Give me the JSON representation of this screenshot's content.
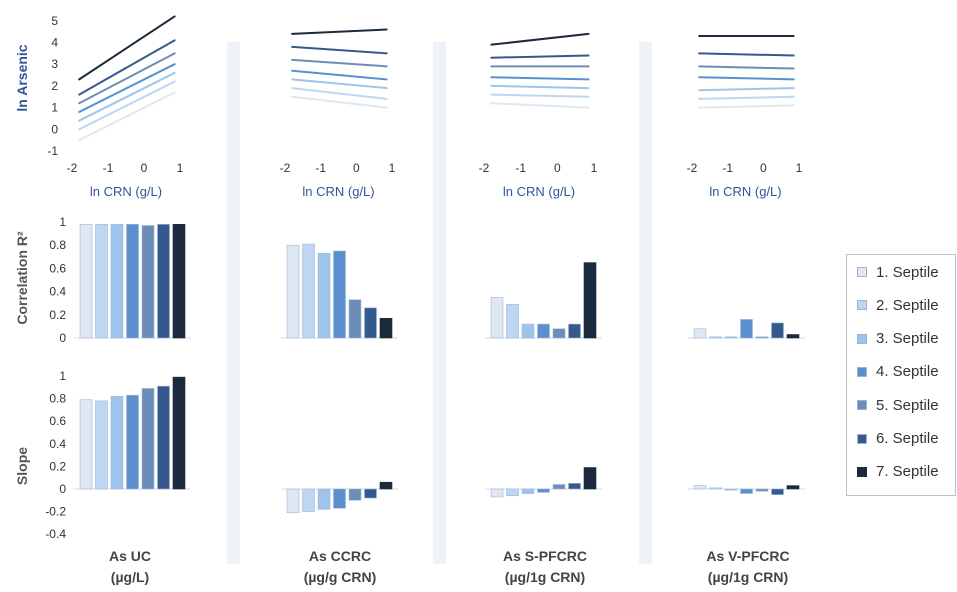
{
  "colors": {
    "septiles": [
      "#dfe7f2",
      "#bdd7f2",
      "#9fc4eb",
      "#5b8fd0",
      "#6c8db8",
      "#35598f",
      "#1b2a3c"
    ],
    "band": "#eef3fa",
    "axis": "#d9d9d9"
  },
  "column_titles": [
    {
      "line1": "As UC",
      "line2": "(µg/L)"
    },
    {
      "line1": "As CCRC",
      "line2": "(µg/g CRN)"
    },
    {
      "line1": "As S-PFCRC",
      "line2": "(µg/1g CRN)"
    },
    {
      "line1": "As V-PFCRC",
      "line2": "(µg/1g CRN)"
    }
  ],
  "chart_data": [
    {
      "type": "line",
      "row": "top",
      "ylabel": "ln Arsenic",
      "xlabel": "ln CRN (g/L)",
      "xlim": [
        -2,
        1
      ],
      "xticks": [
        -2,
        -1,
        0,
        1
      ],
      "ylim": [
        -1,
        5
      ],
      "yticks": [
        -1,
        0,
        1,
        2,
        3,
        4,
        5
      ],
      "x": [
        -1.8,
        0.85
      ],
      "series": [
        {
          "name": "1. Septile",
          "panels": [
            [
              -0.5,
              1.7
            ],
            [
              1.5,
              1.0
            ],
            [
              1.2,
              1.0
            ],
            [
              1.0,
              1.1
            ]
          ]
        },
        {
          "name": "2. Septile",
          "panels": [
            [
              0.0,
              2.2
            ],
            [
              1.9,
              1.4
            ],
            [
              1.6,
              1.5
            ],
            [
              1.4,
              1.5
            ]
          ]
        },
        {
          "name": "3. Septile",
          "panels": [
            [
              0.4,
              2.6
            ],
            [
              2.3,
              1.9
            ],
            [
              2.0,
              1.9
            ],
            [
              1.8,
              1.9
            ]
          ]
        },
        {
          "name": "4. Septile",
          "panels": [
            [
              0.8,
              3.0
            ],
            [
              2.7,
              2.3
            ],
            [
              2.4,
              2.3
            ],
            [
              2.4,
              2.3
            ]
          ]
        },
        {
          "name": "5. Septile",
          "panels": [
            [
              1.2,
              3.5
            ],
            [
              3.2,
              2.9
            ],
            [
              2.9,
              2.9
            ],
            [
              2.9,
              2.8
            ]
          ]
        },
        {
          "name": "6. Septile",
          "panels": [
            [
              1.6,
              4.1
            ],
            [
              3.8,
              3.5
            ],
            [
              3.3,
              3.4
            ],
            [
              3.5,
              3.4
            ]
          ]
        },
        {
          "name": "7. Septile",
          "panels": [
            [
              2.3,
              5.2
            ],
            [
              4.4,
              4.6
            ],
            [
              3.9,
              4.4
            ],
            [
              4.3,
              4.3
            ]
          ]
        }
      ]
    },
    {
      "type": "bar",
      "row": "middle",
      "ylabel": "Correlation R²",
      "ylim": [
        0,
        1
      ],
      "yticks": [
        "0",
        "0.2",
        "0.4",
        "0.6",
        "0.8",
        "1"
      ],
      "categories": [
        "1. Septile",
        "2. Septile",
        "3. Septile",
        "4. Septile",
        "5. Septile",
        "6. Septile",
        "7. Septile"
      ],
      "panels": [
        [
          0.98,
          0.98,
          0.98,
          0.98,
          0.97,
          0.98,
          0.98
        ],
        [
          0.8,
          0.81,
          0.73,
          0.75,
          0.33,
          0.26,
          0.17
        ],
        [
          0.35,
          0.29,
          0.12,
          0.12,
          0.08,
          0.12,
          0.65
        ],
        [
          0.08,
          0.01,
          0.01,
          0.16,
          0.01,
          0.13,
          0.03
        ]
      ]
    },
    {
      "type": "bar",
      "row": "bottom",
      "ylabel": "Slope",
      "ylim": [
        -0.4,
        1
      ],
      "yticks": [
        "-0.4",
        "-0.2",
        "0",
        "0.2",
        "0.4",
        "0.6",
        "0.8",
        "1"
      ],
      "categories": [
        "1. Septile",
        "2. Septile",
        "3. Septile",
        "4. Septile",
        "5. Septile",
        "6. Septile",
        "7. Septile"
      ],
      "panels": [
        [
          0.79,
          0.78,
          0.82,
          0.83,
          0.89,
          0.91,
          0.99
        ],
        [
          -0.21,
          -0.2,
          -0.18,
          -0.17,
          -0.1,
          -0.08,
          0.06
        ],
        [
          -0.07,
          -0.06,
          -0.04,
          -0.03,
          0.04,
          0.05,
          0.19
        ],
        [
          0.03,
          0.01,
          -0.01,
          -0.04,
          -0.02,
          -0.05,
          0.03
        ]
      ]
    }
  ],
  "legend": {
    "items": [
      "1. Septile",
      "2. Septile",
      "3. Septile",
      "4. Septile",
      "5. Septile",
      "6. Septile",
      "7. Septile"
    ]
  }
}
